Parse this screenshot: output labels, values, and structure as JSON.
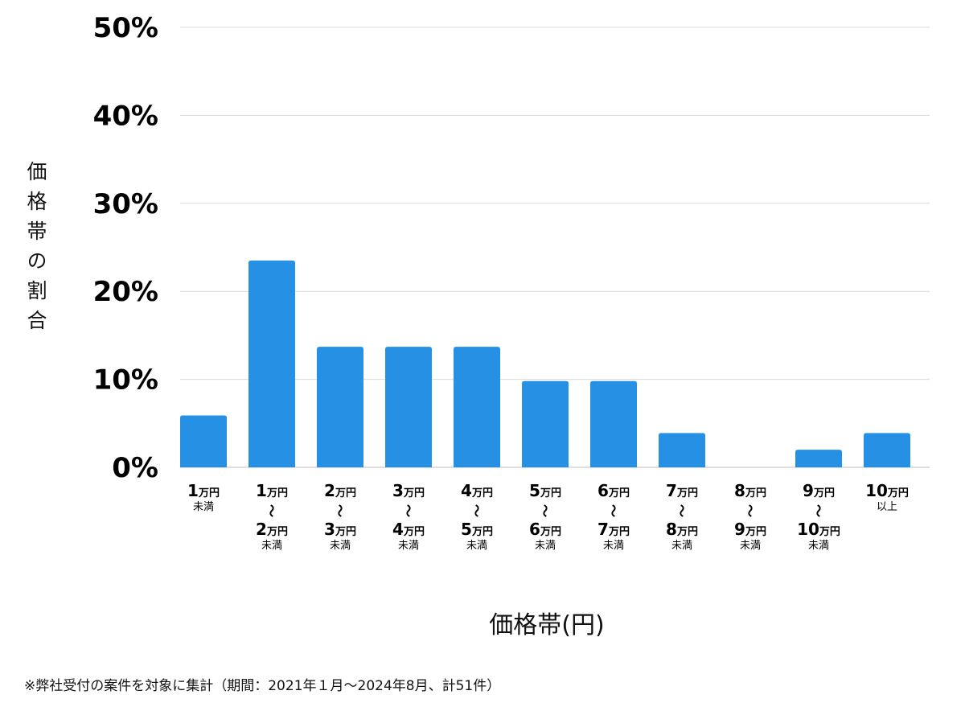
{
  "chart_data": {
    "type": "bar",
    "title": "",
    "ylabel": "価格帯の割合",
    "xlabel": "価格帯(円)",
    "yticks": [
      "0%",
      "10%",
      "20%",
      "30%",
      "40%",
      "50%"
    ],
    "ylim": [
      0,
      50
    ],
    "grid": true,
    "bar_color": "#2590e4",
    "categories": [
      {
        "lines": [
          [
            "1",
            "万円"
          ],
          "未満"
        ]
      },
      {
        "lines": [
          [
            "1",
            "万円"
          ],
          "〜",
          [
            "2",
            "万円"
          ],
          "未満"
        ]
      },
      {
        "lines": [
          [
            "2",
            "万円"
          ],
          "〜",
          [
            "3",
            "万円"
          ],
          "未満"
        ]
      },
      {
        "lines": [
          [
            "3",
            "万円"
          ],
          "〜",
          [
            "4",
            "万円"
          ],
          "未満"
        ]
      },
      {
        "lines": [
          [
            "4",
            "万円"
          ],
          "〜",
          [
            "5",
            "万円"
          ],
          "未満"
        ]
      },
      {
        "lines": [
          [
            "5",
            "万円"
          ],
          "〜",
          [
            "6",
            "万円"
          ],
          "未満"
        ]
      },
      {
        "lines": [
          [
            "6",
            "万円"
          ],
          "〜",
          [
            "7",
            "万円"
          ],
          "未満"
        ]
      },
      {
        "lines": [
          [
            "7",
            "万円"
          ],
          "〜",
          [
            "8",
            "万円"
          ],
          "未満"
        ]
      },
      {
        "lines": [
          [
            "8",
            "万円"
          ],
          "〜",
          [
            "9",
            "万円"
          ],
          "未満"
        ]
      },
      {
        "lines": [
          [
            "9",
            "万円"
          ],
          "〜",
          [
            "10",
            "万円"
          ],
          "未満"
        ]
      },
      {
        "lines": [
          [
            "10",
            "万円"
          ],
          "以上"
        ]
      }
    ],
    "values": [
      5.9,
      23.5,
      13.7,
      13.7,
      13.7,
      9.8,
      9.8,
      3.9,
      0,
      2.0,
      3.9
    ]
  },
  "footnote": "※弊社受付の案件を対象に集計（期間：2021年１月〜2024年8月、計51件）"
}
